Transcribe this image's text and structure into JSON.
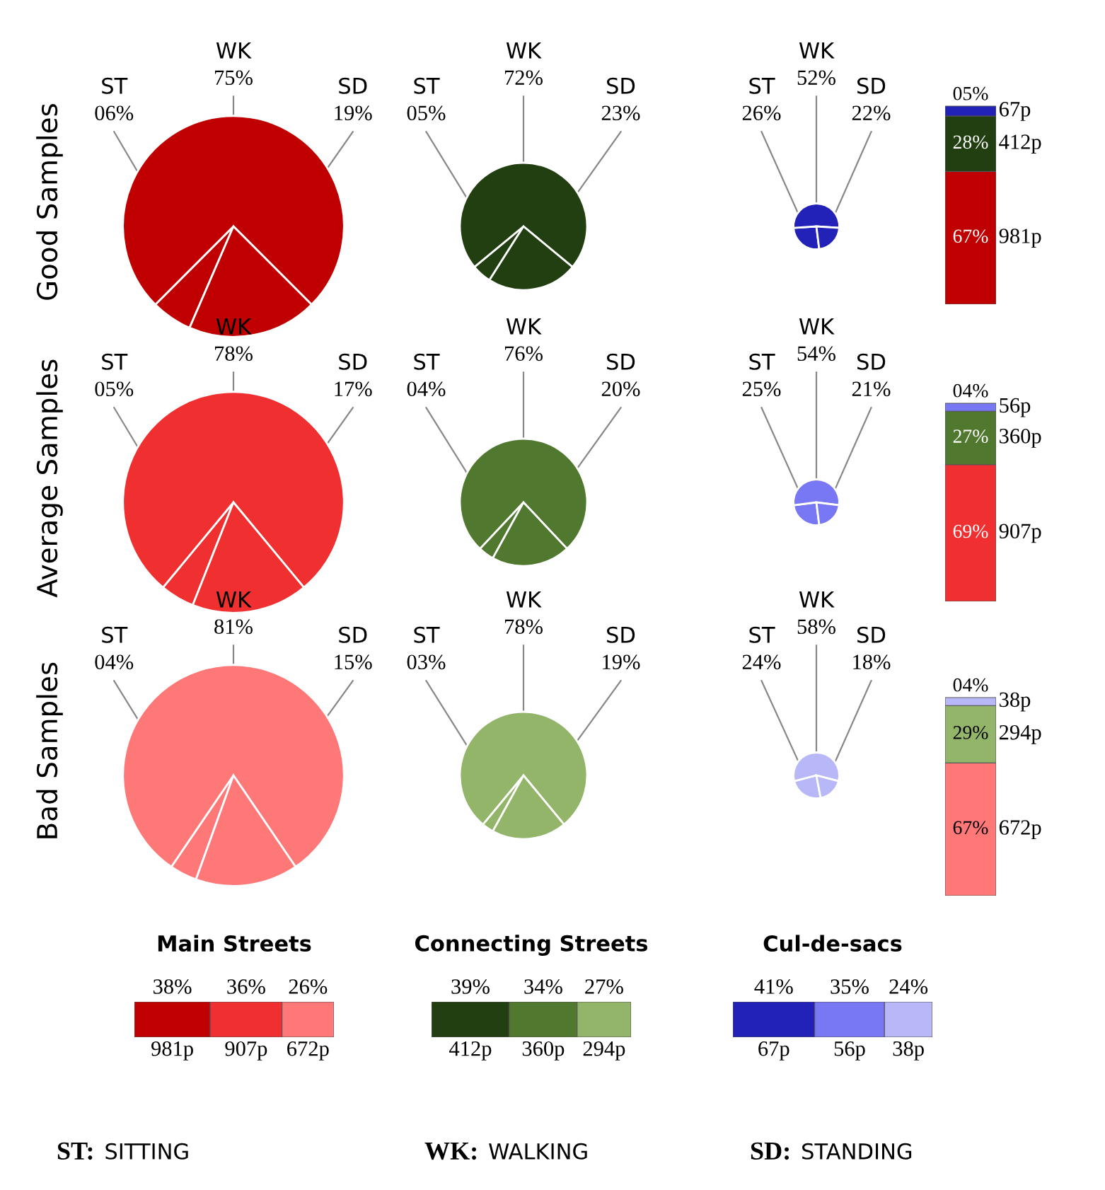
{
  "chart_data": [
    {
      "type": "pie",
      "ylabel": "Good Samples",
      "categories": [
        "ST",
        "WK",
        "SD"
      ],
      "values": [
        6,
        75,
        19
      ],
      "value_labels": [
        "06%",
        "75%",
        "19%"
      ],
      "colors": [
        "#c00000",
        "#c00000",
        "#c00000"
      ]
    },
    {
      "type": "pie",
      "categories": [
        "ST",
        "WK",
        "SD"
      ],
      "values": [
        5,
        72,
        23
      ],
      "value_labels": [
        "05%",
        "72%",
        "23%"
      ],
      "colors": [
        "#213f10",
        "#213f10",
        "#213f10"
      ]
    },
    {
      "type": "pie",
      "categories": [
        "ST",
        "WK",
        "SD"
      ],
      "values": [
        26,
        52,
        22
      ],
      "value_labels": [
        "26%",
        "52%",
        "22%"
      ],
      "colors": [
        "#2222b8",
        "#2222b8",
        "#2222b8"
      ]
    },
    {
      "type": "pie",
      "ylabel": "Average Samples",
      "categories": [
        "ST",
        "WK",
        "SD"
      ],
      "values": [
        5,
        78,
        17
      ],
      "value_labels": [
        "05%",
        "78%",
        "17%"
      ],
      "colors": [
        "#f03030",
        "#f03030",
        "#f03030"
      ]
    },
    {
      "type": "pie",
      "categories": [
        "ST",
        "WK",
        "SD"
      ],
      "values": [
        4,
        76,
        20
      ],
      "value_labels": [
        "04%",
        "76%",
        "20%"
      ],
      "colors": [
        "#50782f",
        "#50782f",
        "#50782f"
      ]
    },
    {
      "type": "pie",
      "categories": [
        "ST",
        "WK",
        "SD"
      ],
      "values": [
        25,
        54,
        21
      ],
      "value_labels": [
        "25%",
        "54%",
        "21%"
      ],
      "colors": [
        "#7878f5",
        "#7878f5",
        "#7878f5"
      ]
    },
    {
      "type": "pie",
      "ylabel": "Bad Samples",
      "categories": [
        "ST",
        "WK",
        "SD"
      ],
      "values": [
        4,
        81,
        15
      ],
      "value_labels": [
        "04%",
        "81%",
        "15%"
      ],
      "colors": [
        "#ff7878",
        "#ff7878",
        "#ff7878"
      ]
    },
    {
      "type": "pie",
      "categories": [
        "ST",
        "WK",
        "SD"
      ],
      "values": [
        3,
        78,
        19
      ],
      "value_labels": [
        "03%",
        "78%",
        "19%"
      ],
      "colors": [
        "#93b56a",
        "#93b56a",
        "#93b56a"
      ]
    },
    {
      "type": "pie",
      "categories": [
        "ST",
        "WK",
        "SD"
      ],
      "values": [
        24,
        58,
        18
      ],
      "value_labels": [
        "24%",
        "58%",
        "18%"
      ],
      "colors": [
        "#b8b8f8",
        "#b8b8f8",
        "#b8b8f8"
      ]
    },
    {
      "type": "bar",
      "stacked": true,
      "categories": [
        null
      ],
      "annotations": [
        "981p",
        "412p",
        "67p"
      ],
      "series": [
        {
          "color": "#c00000",
          "values": [
            67
          ],
          "value_labels": [
            "67%"
          ]
        },
        {
          "color": "#213f10",
          "values": [
            28
          ],
          "value_labels": [
            "28%"
          ]
        },
        {
          "color": "#2222b8",
          "values": [
            5
          ],
          "value_labels": [
            "05%"
          ]
        }
      ]
    },
    {
      "type": "bar",
      "stacked": true,
      "categories": [
        null
      ],
      "annotations": [
        "907p",
        "360p",
        "56p"
      ],
      "series": [
        {
          "color": "#f03030",
          "values": [
            69
          ],
          "value_labels": [
            "69%"
          ]
        },
        {
          "color": "#50782f",
          "values": [
            27
          ],
          "value_labels": [
            "27%"
          ]
        },
        {
          "color": "#7878f5",
          "values": [
            4
          ],
          "value_labels": [
            "04%"
          ]
        }
      ]
    },
    {
      "type": "bar",
      "stacked": true,
      "categories": [
        null
      ],
      "annotations": [
        "672p",
        "294p",
        "38p"
      ],
      "series": [
        {
          "color": "#ff7878",
          "values": [
            67
          ],
          "value_labels": [
            "67%"
          ]
        },
        {
          "color": "#93b56a",
          "values": [
            29
          ],
          "value_labels": [
            "29%"
          ]
        },
        {
          "color": "#b8b8f8",
          "values": [
            4
          ],
          "value_labels": [
            "04%"
          ]
        }
      ]
    },
    {
      "type": "bar",
      "stacked": true,
      "orientation": "horizontal",
      "title": "Main Streets",
      "categories": [
        null
      ],
      "annotations": [
        "981p",
        "907p",
        "672p"
      ],
      "series": [
        {
          "color": "#c00000",
          "values": [
            38
          ],
          "value_labels": [
            "38%"
          ]
        },
        {
          "color": "#f03030",
          "values": [
            36
          ],
          "value_labels": [
            "36%"
          ]
        },
        {
          "color": "#ff7878",
          "values": [
            26
          ],
          "value_labels": [
            "26%"
          ]
        }
      ]
    },
    {
      "type": "bar",
      "stacked": true,
      "orientation": "horizontal",
      "title": "Connecting Streets",
      "categories": [
        null
      ],
      "annotations": [
        "412p",
        "360p",
        "294p"
      ],
      "series": [
        {
          "color": "#213f10",
          "values": [
            39
          ],
          "value_labels": [
            "39%"
          ]
        },
        {
          "color": "#50782f",
          "values": [
            34
          ],
          "value_labels": [
            "34%"
          ]
        },
        {
          "color": "#93b56a",
          "values": [
            27
          ],
          "value_labels": [
            "27%"
          ]
        }
      ]
    },
    {
      "type": "bar",
      "stacked": true,
      "orientation": "horizontal",
      "title": "Cul-de-sacs",
      "categories": [
        null
      ],
      "annotations": [
        "67p",
        "56p",
        "38p"
      ],
      "series": [
        {
          "color": "#2222b8",
          "values": [
            41
          ],
          "value_labels": [
            "41%"
          ]
        },
        {
          "color": "#7878f5",
          "values": [
            35
          ],
          "value_labels": [
            "35%"
          ]
        },
        {
          "color": "#b8b8f8",
          "values": [
            24
          ],
          "value_labels": [
            "24%"
          ]
        }
      ]
    },
    {
      "type": "other",
      "annotations": [
        "ST:",
        "SITTING",
        "WK:",
        "WALKING",
        "SD:",
        "STANDING"
      ]
    }
  ]
}
